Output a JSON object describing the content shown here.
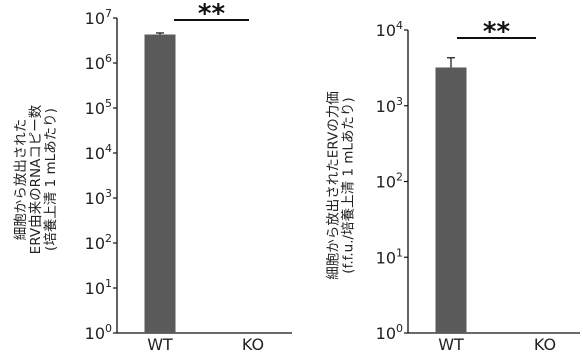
{
  "chart_data": [
    {
      "type": "bar",
      "scale": "log",
      "categories": [
        "WT",
        "KO"
      ],
      "values": [
        4300000,
        null
      ],
      "errors": [
        350000,
        null
      ],
      "ylim": [
        1,
        10000000
      ],
      "yticks": [
        1,
        10,
        100,
        1000,
        10000,
        100000,
        1000000,
        10000000
      ],
      "ytick_labels": [
        {
          "base": "10",
          "exp": "0"
        },
        {
          "base": "10",
          "exp": "1"
        },
        {
          "base": "10",
          "exp": "2"
        },
        {
          "base": "10",
          "exp": "3"
        },
        {
          "base": "10",
          "exp": "4"
        },
        {
          "base": "10",
          "exp": "5"
        },
        {
          "base": "10",
          "exp": "6"
        },
        {
          "base": "10",
          "exp": "7"
        }
      ],
      "ylabel_lines": [
        "細胞から放出された",
        "ERV由来のRNAコピー数",
        "(培養上清 1 mLあたり)"
      ],
      "significance": "**",
      "bar_color": "#5a5a5a",
      "grid": false
    },
    {
      "type": "bar",
      "scale": "log",
      "categories": [
        "WT",
        "KO"
      ],
      "values": [
        3200,
        null
      ],
      "errors": [
        1100,
        null
      ],
      "ylim": [
        1,
        10000
      ],
      "yticks": [
        1,
        10,
        100,
        1000,
        10000
      ],
      "ytick_labels": [
        {
          "base": "10",
          "exp": "0"
        },
        {
          "base": "10",
          "exp": "1"
        },
        {
          "base": "10",
          "exp": "2"
        },
        {
          "base": "10",
          "exp": "3"
        },
        {
          "base": "10",
          "exp": "4"
        }
      ],
      "ylabel_lines": [
        "細胞から放出されたERVの力価",
        "(f.f.u./培養上清 1 mLあたり)"
      ],
      "significance": "**",
      "bar_color": "#5a5a5a",
      "grid": false
    }
  ]
}
